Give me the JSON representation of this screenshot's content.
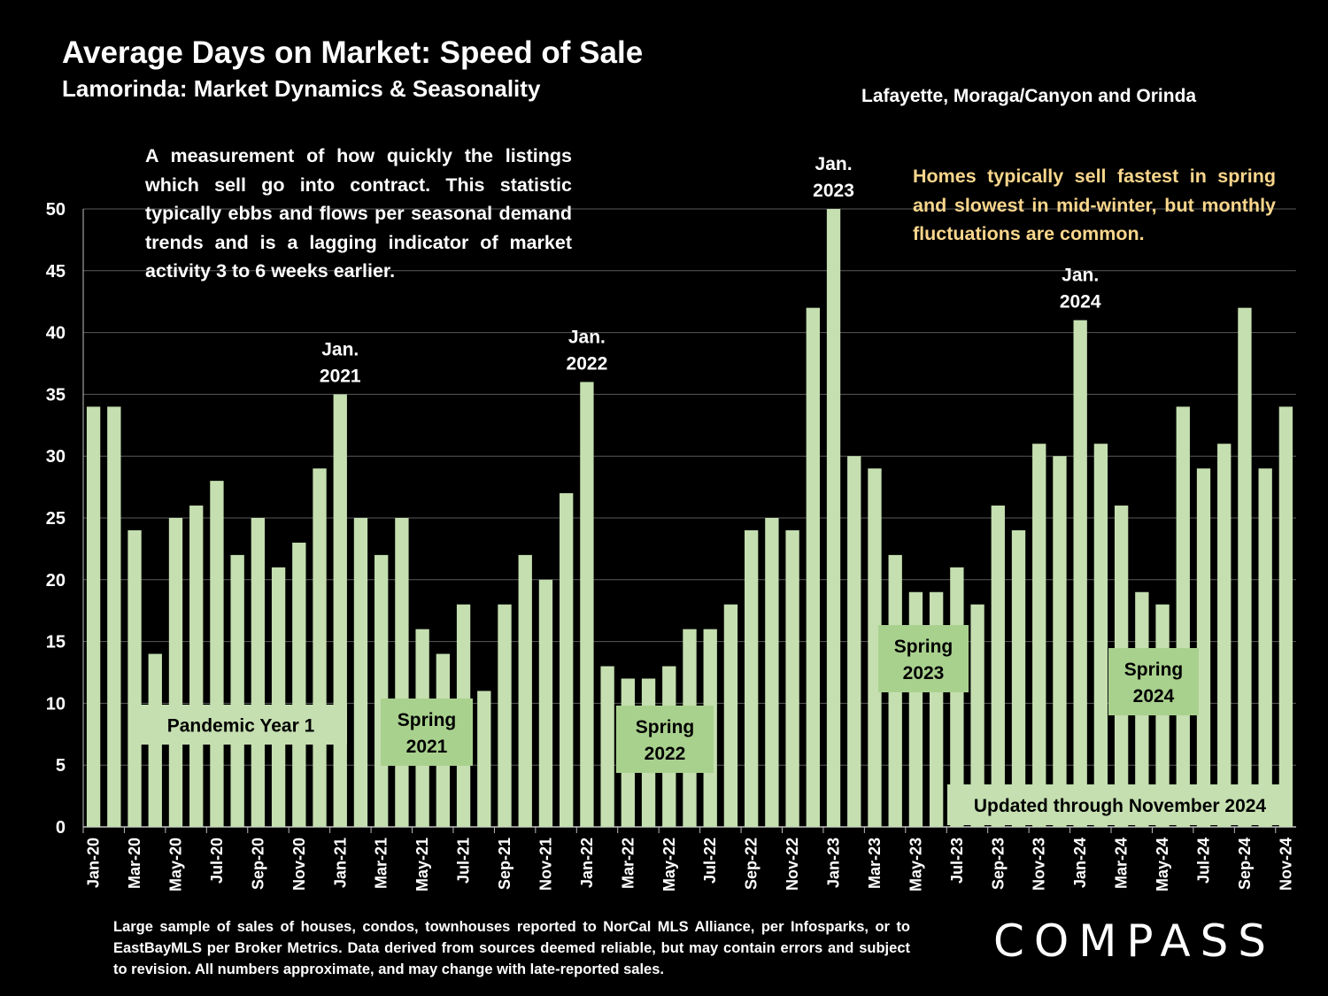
{
  "title": "Average Days on Market:  Speed of Sale",
  "subtitle": "Lamorinda: Market Dynamics & Seasonality",
  "region": "Lafayette, Moraga/Canyon and Orinda",
  "description": "A measurement of how quickly the listings which sell go into contract. This statistic typically ebbs and flows per seasonal demand trends and is a lagging indicator of market activity 3 to 6 weeks earlier.",
  "insight": "Homes typically sell fastest in spring and slowest in mid-winter, but monthly fluctuations are common.",
  "footnote": "Large sample of sales of houses, condos, townhouses reported to NorCal MLS Alliance, per Infosparks, or to EastBayMLS per Broker Metrics. Data derived from sources deemed reliable, but may contain errors and subject to revision. All numbers approximate, and may change with late-reported sales.",
  "logo": "COMPASS",
  "colors": {
    "bar": "#c5dfb0",
    "box_dark": "#a9d18e",
    "box_light": "#c5dfb0",
    "insight_text": "#f9d68c",
    "background": "#000000"
  },
  "chart_data": {
    "type": "bar",
    "xlabel": "",
    "ylabel": "",
    "ylim": [
      0,
      50
    ],
    "yticks": [
      0,
      5,
      10,
      15,
      20,
      25,
      30,
      35,
      40,
      45,
      50
    ],
    "grid": true,
    "months": [
      "Jan-20",
      "Feb-20",
      "Mar-20",
      "Apr-20",
      "May-20",
      "Jun-20",
      "Jul-20",
      "Aug-20",
      "Sep-20",
      "Oct-20",
      "Nov-20",
      "Dec-20",
      "Jan-21",
      "Feb-21",
      "Mar-21",
      "Apr-21",
      "May-21",
      "Jun-21",
      "Jul-21",
      "Aug-21",
      "Sep-21",
      "Oct-21",
      "Nov-21",
      "Dec-21",
      "Jan-22",
      "Feb-22",
      "Mar-22",
      "Apr-22",
      "May-22",
      "Jun-22",
      "Jul-22",
      "Aug-22",
      "Sep-22",
      "Oct-22",
      "Nov-22",
      "Dec-22",
      "Jan-23",
      "Feb-23",
      "Mar-23",
      "Apr-23",
      "May-23",
      "Jun-23",
      "Jul-23",
      "Aug-23",
      "Sep-23",
      "Oct-23",
      "Nov-23",
      "Dec-23",
      "Jan-24",
      "Feb-24",
      "Mar-24",
      "Apr-24",
      "May-24",
      "Jun-24",
      "Jul-24",
      "Aug-24",
      "Sep-24",
      "Oct-24",
      "Nov-24"
    ],
    "values": [
      34,
      34,
      24,
      14,
      25,
      26,
      28,
      22,
      25,
      21,
      23,
      29,
      35,
      25,
      22,
      25,
      16,
      14,
      18,
      11,
      18,
      22,
      20,
      27,
      36,
      13,
      12,
      12,
      13,
      16,
      16,
      18,
      24,
      25,
      24,
      42,
      50,
      30,
      29,
      22,
      19,
      19,
      21,
      18,
      26,
      24,
      31,
      30,
      41,
      31,
      26,
      19,
      18,
      34,
      29,
      31,
      42,
      29,
      34
    ],
    "xtick_labels": [
      "Jan-20",
      "Mar-20",
      "May-20",
      "Jul-20",
      "Sep-20",
      "Nov-20",
      "Jan-21",
      "Mar-21",
      "May-21",
      "Jul-21",
      "Sep-21",
      "Nov-21",
      "Jan-22",
      "Mar-22",
      "May-22",
      "Jul-22",
      "Sep-22",
      "Nov-22",
      "Jan-23",
      "Mar-23",
      "May-23",
      "Jul-23",
      "Sep-23",
      "Nov-23",
      "Jan-24",
      "Mar-24",
      "May-24",
      "Jul-24",
      "Sep-24",
      "Nov-24"
    ],
    "annotations": [
      {
        "month": "Jan-21",
        "lines": [
          "Jan.",
          "2021"
        ]
      },
      {
        "month": "Jan-22",
        "lines": [
          "Jan.",
          "2022"
        ]
      },
      {
        "month": "Jan-23",
        "lines": [
          "Jan.",
          "2023"
        ]
      },
      {
        "month": "Jan-24",
        "lines": [
          "Jan.",
          "2024"
        ]
      }
    ],
    "label_boxes": [
      {
        "lines": [
          "Pandemic Year 1"
        ],
        "style": "light"
      },
      {
        "lines": [
          "Spring",
          "2021"
        ],
        "style": "dark"
      },
      {
        "lines": [
          "Spring",
          "2022"
        ],
        "style": "dark"
      },
      {
        "lines": [
          "Spring",
          "2023"
        ],
        "style": "dark"
      },
      {
        "lines": [
          "Spring",
          "2024"
        ],
        "style": "dark"
      },
      {
        "lines": [
          "Updated through November 2024"
        ],
        "style": "light"
      }
    ]
  }
}
